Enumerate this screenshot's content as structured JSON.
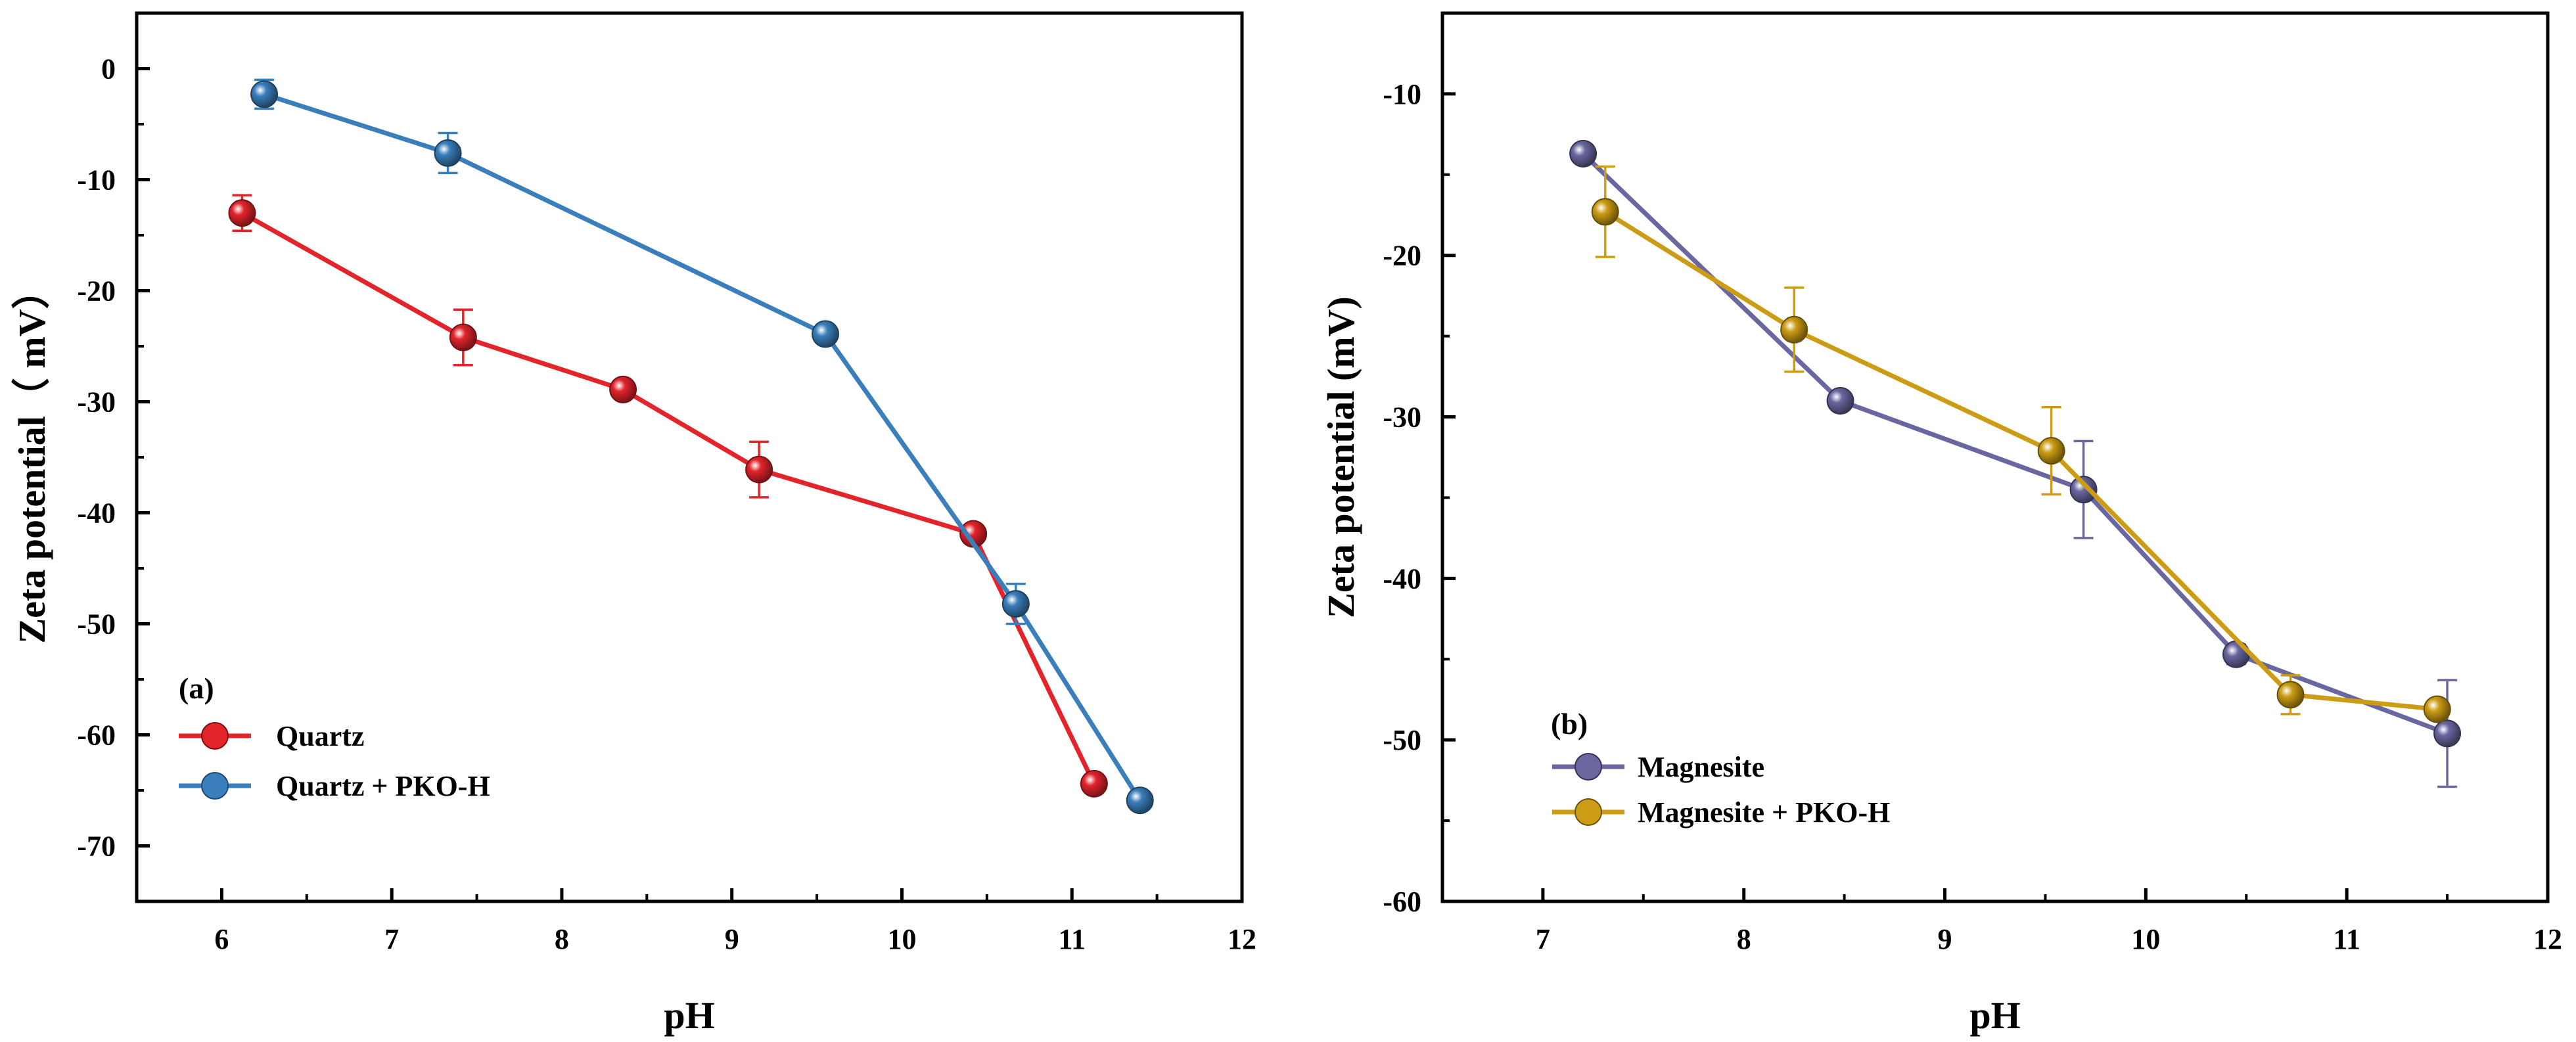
{
  "chart_data": [
    {
      "type": "line",
      "panel_label": "(a)",
      "xlabel": "pH",
      "ylabel": "Zeta potential（ mV）",
      "xlim": [
        5.5,
        12
      ],
      "ylim": [
        -75,
        5
      ],
      "xticks": [
        6,
        7,
        8,
        9,
        10,
        11,
        12
      ],
      "yticks": [
        0,
        -10,
        -20,
        -30,
        -40,
        -50,
        -60,
        -70
      ],
      "xtick_labels": [
        "6",
        "7",
        "8",
        "9",
        "10",
        "11",
        "12"
      ],
      "ytick_labels": [
        "0",
        "-10",
        "-20",
        "-30",
        "-40",
        "-50",
        "-60",
        "-70"
      ],
      "legend_position": "bottom-left",
      "series": [
        {
          "name": "Quartz",
          "color": "#e3242b",
          "x": [
            6.12,
            7.42,
            8.36,
            9.16,
            10.42,
            11.13
          ],
          "y": [
            -13.0,
            -24.2,
            -28.9,
            -36.1,
            -41.9,
            -64.4
          ],
          "err": [
            1.6,
            2.5,
            0.7,
            2.5,
            0.4,
            0.3
          ]
        },
        {
          "name": "Quartz + PKO-H",
          "color": "#3a7fbc",
          "x": [
            6.25,
            7.33,
            9.55,
            10.67,
            11.4
          ],
          "y": [
            -2.3,
            -7.6,
            -23.9,
            -48.2,
            -65.9
          ],
          "err": [
            1.3,
            1.8,
            0.6,
            1.8,
            0.3
          ]
        }
      ]
    },
    {
      "type": "line",
      "panel_label": "(b)",
      "xlabel": "pH",
      "ylabel": "Zeta potential (mV)",
      "xlim": [
        6.5,
        12
      ],
      "ylim": [
        -60,
        -5
      ],
      "xticks": [
        7,
        8,
        9,
        10,
        11,
        12
      ],
      "yticks": [
        -10,
        -20,
        -30,
        -40,
        -50,
        -60
      ],
      "xtick_labels": [
        "7",
        "8",
        "9",
        "10",
        "11",
        "12"
      ],
      "ytick_labels": [
        "-10",
        "-20",
        "-30",
        "-40",
        "-50",
        "-60"
      ],
      "legend_position": "bottom-left",
      "series": [
        {
          "name": "Magnesite",
          "color": "#6a67a0",
          "x": [
            7.2,
            8.48,
            9.69,
            10.45,
            11.5
          ],
          "y": [
            -13.7,
            -29.0,
            -34.5,
            -44.7,
            -49.6
          ],
          "err": [
            0.3,
            0.4,
            3.0,
            0.6,
            3.3
          ]
        },
        {
          "name": "Magnesite + PKO-H",
          "color": "#cc9d14",
          "x": [
            7.31,
            8.25,
            9.53,
            10.72,
            11.45
          ],
          "y": [
            -17.3,
            -24.6,
            -32.1,
            -47.2,
            -48.1
          ],
          "err": [
            2.8,
            2.6,
            2.7,
            1.2,
            0.3
          ]
        }
      ]
    }
  ]
}
